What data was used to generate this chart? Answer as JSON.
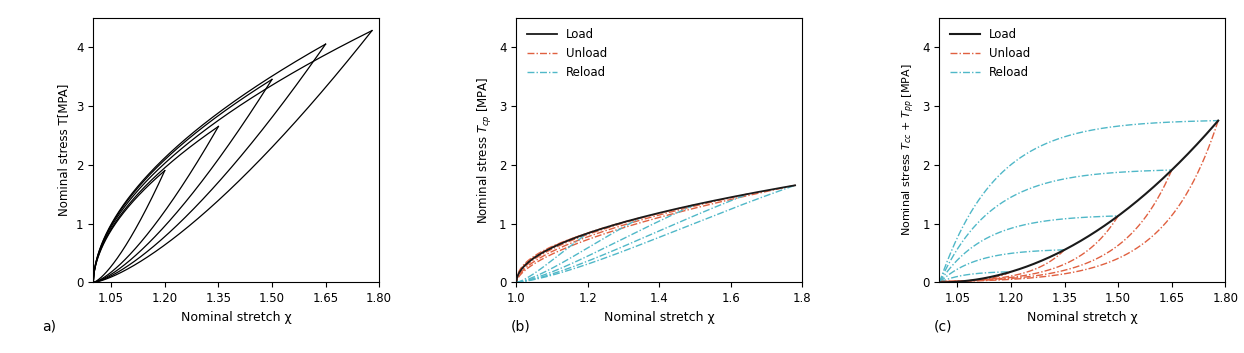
{
  "fig_width": 12.44,
  "fig_height": 3.53,
  "dpi": 100,
  "panel_a": {
    "xlabel": "Nominal stretch χ",
    "ylabel": "Nominal stress T[MPA]",
    "xlim": [
      1.0,
      1.8
    ],
    "ylim": [
      0,
      4.5
    ],
    "xticks": [
      1.05,
      1.2,
      1.35,
      1.5,
      1.65,
      1.8
    ],
    "yticks": [
      0,
      1,
      2,
      3,
      4
    ],
    "label": "a)"
  },
  "panel_b": {
    "xlabel": "Nominal stretch χ",
    "ylabel": "Nominal stress T_cp [MPA]",
    "xlim": [
      1.0,
      1.8
    ],
    "ylim": [
      0,
      4.5
    ],
    "xticks": [
      1.0,
      1.2,
      1.4,
      1.6,
      1.8
    ],
    "yticks": [
      0,
      1,
      2,
      3,
      4
    ],
    "label": "(b)"
  },
  "panel_c": {
    "xlabel": "Nominal stretch χ",
    "ylabel": "Nominal stress T_cc + T_pp [MPA]",
    "xlim": [
      1.0,
      1.8
    ],
    "ylim": [
      0,
      4.5
    ],
    "xticks": [
      1.05,
      1.2,
      1.35,
      1.5,
      1.65,
      1.8
    ],
    "yticks": [
      0,
      1,
      2,
      3,
      4
    ],
    "label": "(c)"
  },
  "load_color": "#1a1a1a",
  "unload_color": "#E06040",
  "reload_color": "#50B8C8",
  "cycle_max_x": [
    1.2,
    1.35,
    1.5,
    1.65,
    1.78
  ],
  "cycle_max_y_a": [
    1.9,
    2.65,
    3.45,
    4.05,
    4.28
  ]
}
